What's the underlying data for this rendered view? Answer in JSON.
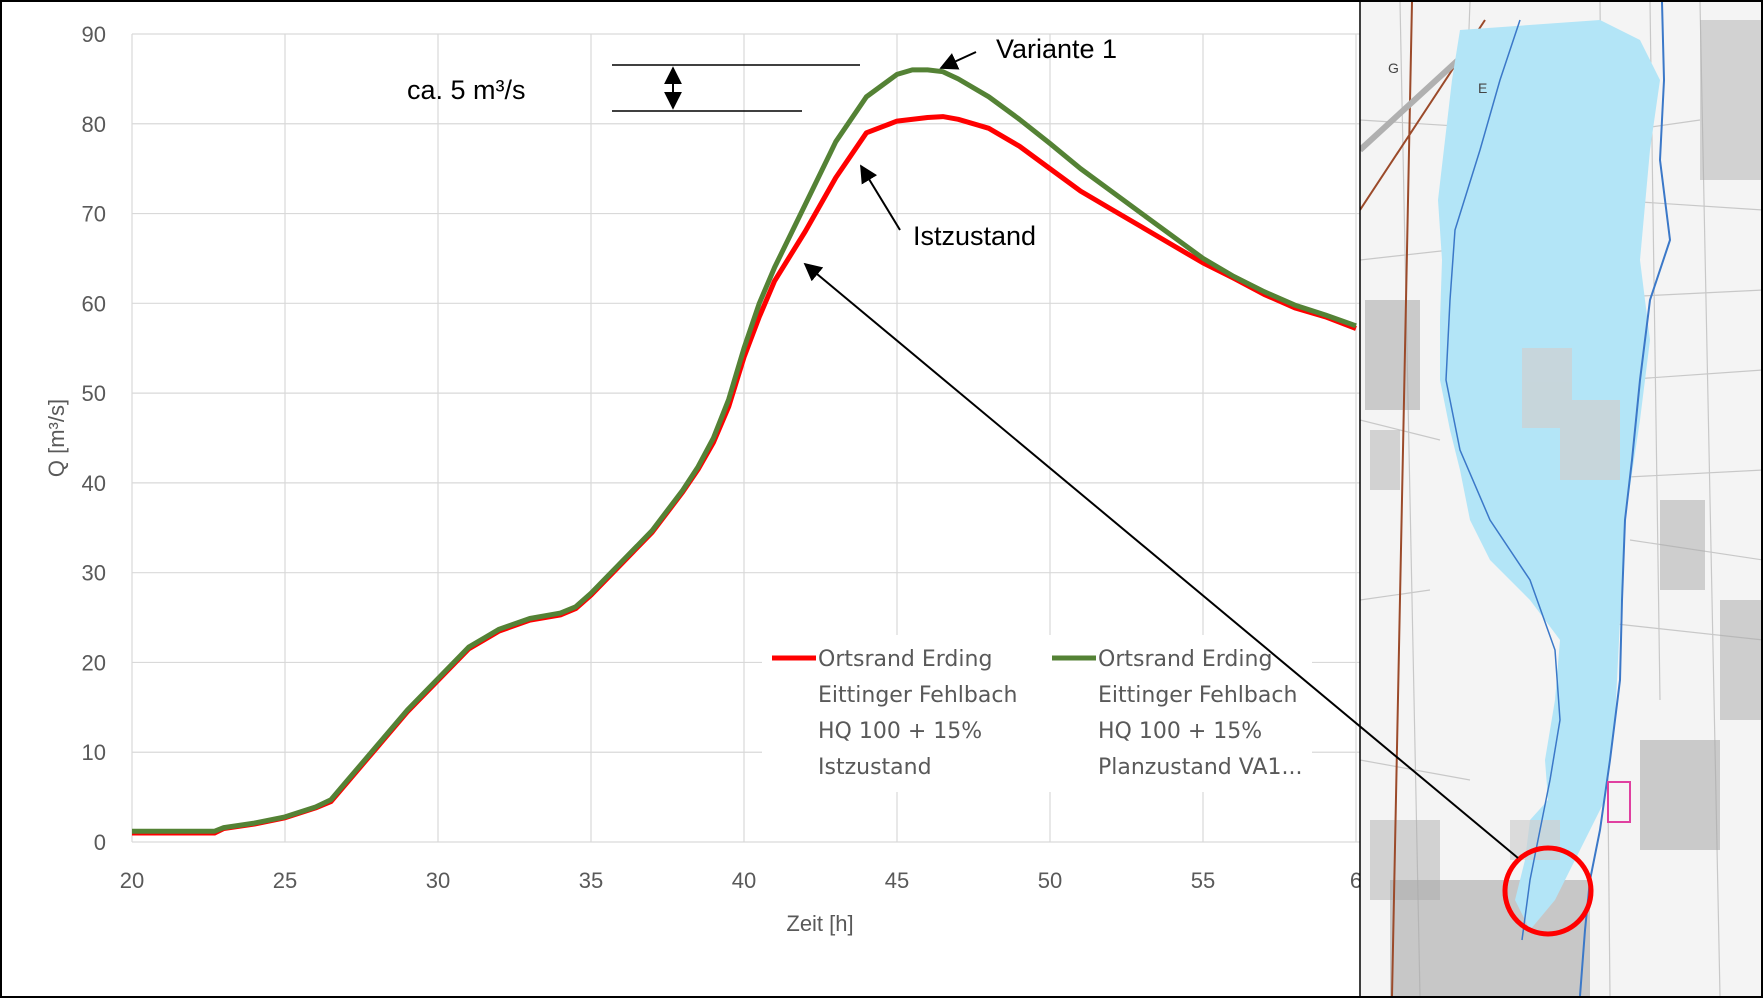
{
  "colors": {
    "istzustand": "#ff0000",
    "variante": "#548235",
    "grid": "#d9d9d9",
    "axis_text": "#595959",
    "annotation": "#000000",
    "flood_area": "#b3e5f7",
    "river": "#3b78c8",
    "map_background": "#f4f4f4"
  },
  "annotations": {
    "difference": "ca. 5 m³/s",
    "variante": "Variante 1",
    "istzustand": "Istzustand"
  },
  "map": {
    "labels": [
      "G",
      "E"
    ],
    "description_icon": "flood-map-image"
  },
  "chart_data": {
    "type": "line",
    "xlabel": "Zeit [h]",
    "ylabel": "Q [m³/s]",
    "xlim": [
      20,
      60
    ],
    "ylim": [
      0,
      90
    ],
    "x_ticks": [
      "20",
      "25",
      "30",
      "35",
      "40",
      "45",
      "50",
      "55",
      "6"
    ],
    "y_ticks": [
      "0",
      "10",
      "20",
      "30",
      "40",
      "50",
      "60",
      "70",
      "80",
      "90"
    ],
    "grid": true,
    "legend_position": "lower-right",
    "series": [
      {
        "name_lines": [
          "Ortsrand Erding",
          "Eittinger Fehlbach",
          "HQ 100 + 15%",
          "Istzustand"
        ],
        "color": "#ff0000",
        "x": [
          20,
          22,
          22.7,
          23,
          24,
          25,
          26,
          26.5,
          27,
          28,
          29,
          30,
          31,
          32,
          33,
          34,
          34.5,
          35,
          36,
          37,
          38,
          38.5,
          39,
          39.5,
          40,
          40.5,
          41,
          42,
          43,
          44,
          45,
          46,
          46.5,
          47,
          48,
          49,
          50,
          51,
          52,
          53,
          54,
          55,
          56,
          57,
          58,
          59,
          60
        ],
        "y": [
          1.0,
          1.0,
          1.0,
          1.5,
          2.0,
          2.7,
          3.8,
          4.5,
          6.5,
          10.5,
          14.5,
          18.0,
          21.5,
          23.5,
          24.7,
          25.3,
          26.0,
          27.5,
          31.0,
          34.5,
          39.0,
          41.5,
          44.5,
          48.5,
          54.0,
          58.5,
          62.5,
          68.0,
          74.0,
          79.0,
          80.3,
          80.7,
          80.8,
          80.5,
          79.5,
          77.5,
          75.0,
          72.5,
          70.5,
          68.5,
          66.5,
          64.5,
          62.8,
          61.0,
          59.5,
          58.5,
          57.2
        ]
      },
      {
        "name_lines": [
          "Ortsrand Erding",
          "Eittinger Fehlbach",
          "HQ 100 + 15%",
          "Planzustand VA1..."
        ],
        "color": "#548235",
        "x": [
          20,
          22,
          22.7,
          23,
          24,
          25,
          26,
          26.5,
          27,
          28,
          29,
          30,
          31,
          32,
          33,
          34,
          34.5,
          35,
          36,
          37,
          38,
          38.5,
          39,
          39.5,
          40,
          40.5,
          41,
          42,
          43,
          44,
          45,
          45.5,
          46,
          46.5,
          47,
          48,
          49,
          50,
          51,
          52,
          53,
          54,
          55,
          56,
          57,
          58,
          59,
          60
        ],
        "y": [
          1.2,
          1.2,
          1.2,
          1.6,
          2.1,
          2.8,
          3.9,
          4.7,
          6.7,
          10.7,
          14.7,
          18.2,
          21.7,
          23.7,
          24.9,
          25.5,
          26.2,
          27.7,
          31.2,
          34.7,
          39.2,
          41.8,
          45.0,
          49.3,
          55.0,
          60.0,
          64.0,
          71.0,
          78.0,
          83.0,
          85.5,
          86.0,
          86.0,
          85.8,
          85.0,
          83.0,
          80.5,
          77.8,
          75.0,
          72.5,
          70.0,
          67.5,
          65.0,
          63.0,
          61.3,
          59.8,
          58.7,
          57.5
        ]
      }
    ]
  }
}
